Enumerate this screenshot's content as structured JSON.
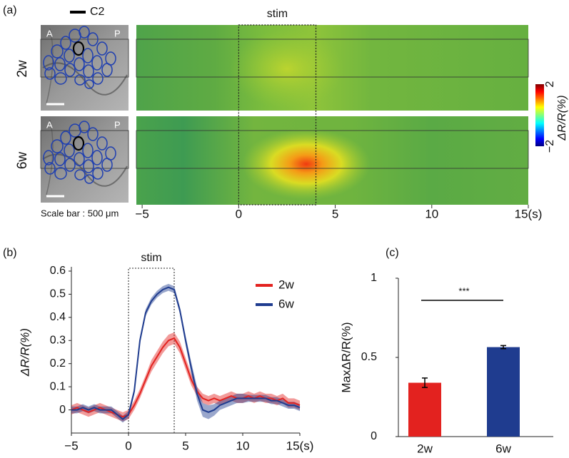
{
  "chart_data": [
    {
      "type": "heatmap",
      "panel_label": "(a)",
      "annotation": "stim",
      "stim": [
        0,
        4
      ],
      "rows": [
        "2w",
        "6w"
      ],
      "orientation_labels": [
        "A",
        "P"
      ],
      "whisker": "C2",
      "scale_bar": "Scale bar : 500 μm",
      "xlim": [
        -5.3,
        15
      ],
      "xticks": [
        {
          "value": -5,
          "label": "−5"
        },
        0,
        5,
        10,
        {
          "value": 15,
          "label": "15(s)"
        }
      ],
      "colorbar": {
        "label": "ΔR/R(%)",
        "lim": [
          -2,
          2
        ],
        "ticks": [
          {
            "value": -2,
            "label": "−2"
          },
          2
        ]
      }
    },
    {
      "type": "line",
      "panel_label": "(b)",
      "annotation": "stim",
      "stim": [
        0,
        4
      ],
      "ylabel": "ΔR/R(%)",
      "x": [
        -5,
        -4.5,
        -4,
        -3.5,
        -3,
        -2.5,
        -2,
        -1.5,
        -1,
        -0.5,
        0,
        0.5,
        1,
        1.5,
        2,
        2.5,
        3,
        3.5,
        4,
        4.5,
        5,
        5.5,
        6,
        6.5,
        7,
        7.5,
        8,
        8.5,
        9,
        9.5,
        10,
        10.5,
        11,
        11.5,
        12,
        12.5,
        13,
        13.5,
        14,
        14.5,
        15
      ],
      "series": [
        {
          "name": "2w",
          "color": "#e3221f",
          "values": [
            0.0,
            0.01,
            0.0,
            -0.01,
            0.0,
            0.01,
            0.0,
            -0.01,
            -0.02,
            -0.03,
            -0.02,
            0.02,
            0.07,
            0.13,
            0.19,
            0.23,
            0.27,
            0.3,
            0.31,
            0.27,
            0.2,
            0.13,
            0.08,
            0.05,
            0.04,
            0.05,
            0.04,
            0.05,
            0.06,
            0.05,
            0.05,
            0.06,
            0.05,
            0.06,
            0.05,
            0.05,
            0.04,
            0.05,
            0.03,
            0.03,
            0.02
          ],
          "errors": [
            0.02,
            0.02,
            0.02,
            0.02,
            0.02,
            0.02,
            0.02,
            0.02,
            0.02,
            0.02,
            0.02,
            0.02,
            0.02,
            0.02,
            0.025,
            0.025,
            0.025,
            0.025,
            0.025,
            0.025,
            0.025,
            0.025,
            0.02,
            0.02,
            0.02,
            0.02,
            0.02,
            0.02,
            0.02,
            0.02,
            0.02,
            0.02,
            0.02,
            0.02,
            0.02,
            0.02,
            0.02,
            0.02,
            0.02,
            0.02,
            0.02
          ]
        },
        {
          "name": "6w",
          "color": "#1f3c8f",
          "values": [
            0.0,
            0.0,
            0.01,
            0.0,
            0.01,
            0.0,
            0.0,
            0.0,
            -0.02,
            -0.04,
            -0.02,
            0.08,
            0.3,
            0.42,
            0.47,
            0.5,
            0.52,
            0.53,
            0.52,
            0.43,
            0.3,
            0.18,
            0.07,
            0.0,
            -0.01,
            0.0,
            0.02,
            0.03,
            0.04,
            0.05,
            0.05,
            0.05,
            0.05,
            0.05,
            0.05,
            0.04,
            0.04,
            0.03,
            0.02,
            0.02,
            0.01
          ],
          "errors": [
            0.015,
            0.015,
            0.015,
            0.015,
            0.015,
            0.015,
            0.015,
            0.015,
            0.015,
            0.015,
            0.015,
            0.015,
            0.015,
            0.015,
            0.015,
            0.015,
            0.015,
            0.015,
            0.015,
            0.015,
            0.02,
            0.025,
            0.03,
            0.03,
            0.03,
            0.025,
            0.02,
            0.02,
            0.02,
            0.02,
            0.02,
            0.015,
            0.015,
            0.015,
            0.015,
            0.015,
            0.015,
            0.015,
            0.015,
            0.015,
            0.015
          ]
        }
      ],
      "xlim": [
        -5,
        15
      ],
      "xticks": [
        {
          "value": -5,
          "label": "−5"
        },
        0,
        5,
        10,
        {
          "value": 15,
          "label": "15(s)"
        }
      ],
      "ylim": [
        -0.1,
        0.6
      ],
      "yticks": [
        0,
        0.1,
        0.2,
        0.3,
        0.4,
        0.5,
        0.6
      ]
    },
    {
      "type": "bar",
      "panel_label": "(c)",
      "annotation": "***",
      "ylabel": "MaxΔR/R(%)",
      "categories": [
        "2w",
        "6w"
      ],
      "values": [
        0.34,
        0.565
      ],
      "errors": [
        0.03,
        0.01
      ],
      "colors": [
        "#e3221f",
        "#1f3c8f"
      ],
      "ylim": [
        0,
        1
      ],
      "yticks": [
        0,
        0.5,
        1
      ]
    }
  ]
}
